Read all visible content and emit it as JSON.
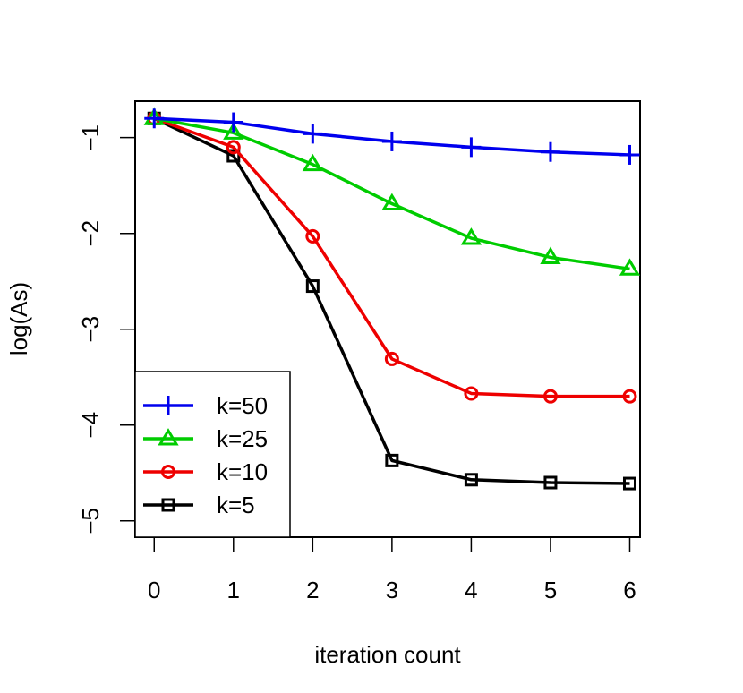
{
  "chart_data": {
    "type": "line",
    "title": "",
    "xlabel": "iteration count",
    "ylabel": "log(As)",
    "x": [
      0,
      1,
      2,
      3,
      4,
      5,
      6
    ],
    "xlim": [
      -0.24,
      6.13
    ],
    "ylim": [
      -5.17,
      -0.62
    ],
    "xticks": [
      "0",
      "1",
      "2",
      "3",
      "4",
      "5",
      "6"
    ],
    "yticks": [
      "−1",
      "−2",
      "−3",
      "−4",
      "−5"
    ],
    "ytick_values": [
      -1,
      -2,
      -3,
      -4,
      -5
    ],
    "grid": false,
    "legend_position": "bottom-left",
    "series": [
      {
        "name": "k=50",
        "marker": "plus",
        "color": "#0000ee",
        "values": [
          -0.8,
          -0.84,
          -0.96,
          -1.04,
          -1.1,
          -1.15,
          -1.18
        ]
      },
      {
        "name": "k=25",
        "marker": "triangle",
        "color": "#00cc00",
        "values": [
          -0.8,
          -0.95,
          -1.28,
          -1.69,
          -2.05,
          -2.25,
          -2.37
        ]
      },
      {
        "name": "k=10",
        "marker": "circle",
        "color": "#ee0000",
        "values": [
          -0.8,
          -1.1,
          -2.03,
          -3.31,
          -3.67,
          -3.7,
          -3.7
        ]
      },
      {
        "name": "k=5",
        "marker": "square",
        "color": "#000000",
        "values": [
          -0.8,
          -1.19,
          -2.55,
          -4.37,
          -4.57,
          -4.6,
          -4.61
        ]
      }
    ]
  }
}
